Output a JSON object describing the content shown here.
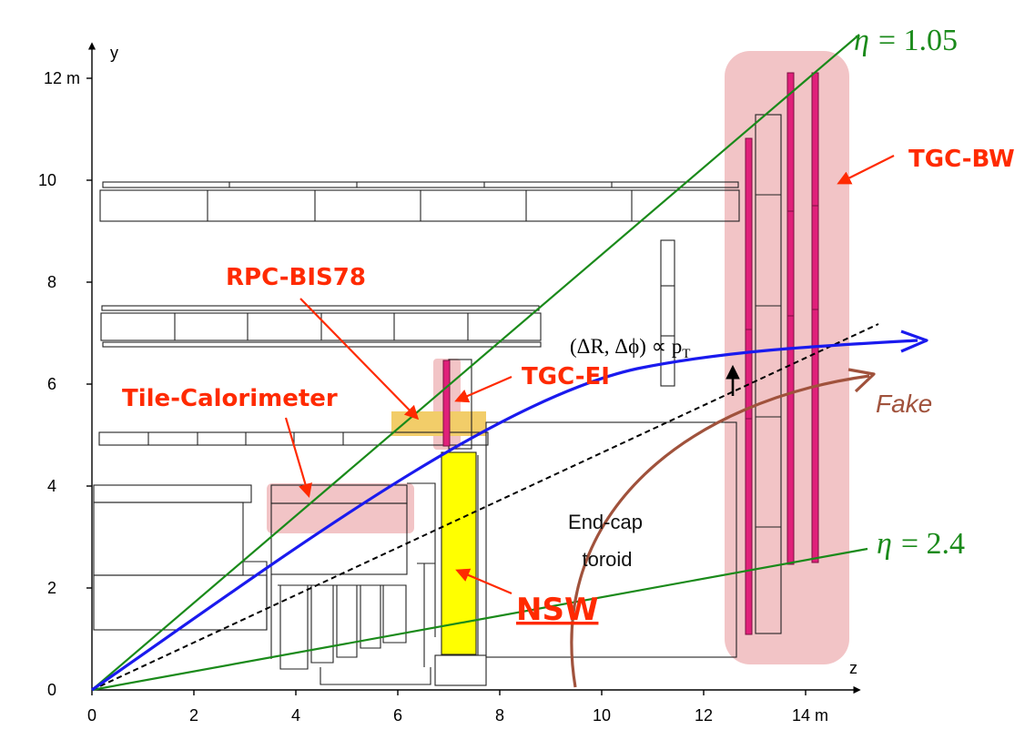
{
  "axes": {
    "x_label": "z",
    "y_label": "y",
    "x_ticks": [
      "0",
      "2",
      "4",
      "6",
      "8",
      "10",
      "12",
      "14 m"
    ],
    "y_ticks": [
      "0",
      "2",
      "4",
      "6",
      "8",
      "10",
      "12 m"
    ]
  },
  "labels": {
    "eta_high_greek": "η",
    "eta_high_value": "= 1.05",
    "eta_low_greek": "η",
    "eta_low_value": "= 2.4",
    "tgc_bw": "TGC-BW",
    "rpc_bis78": "RPC-BIS78",
    "tgc_ei": "TGC-EI",
    "tile_calorimeter": "Tile-Calorimeter",
    "nsw": "NSW",
    "fake": "Fake",
    "endcap_toroid_line1": "End-cap",
    "endcap_toroid_line2": "toroid",
    "delta_formula_prefix": "(ΔR, Δϕ) ∝ p",
    "delta_formula_sub": "T"
  },
  "colors": {
    "eta_line": "#1a8a1a",
    "muon_track": "#1a1aee",
    "fake_track": "#a0523c",
    "label_red": "#ff2a00",
    "tgc_chamber": "#e0207a",
    "highlight_pink": "#f2c4c6",
    "highlight_yellow": "#f2cd69",
    "nsw_yellow": "#ffff00"
  }
}
